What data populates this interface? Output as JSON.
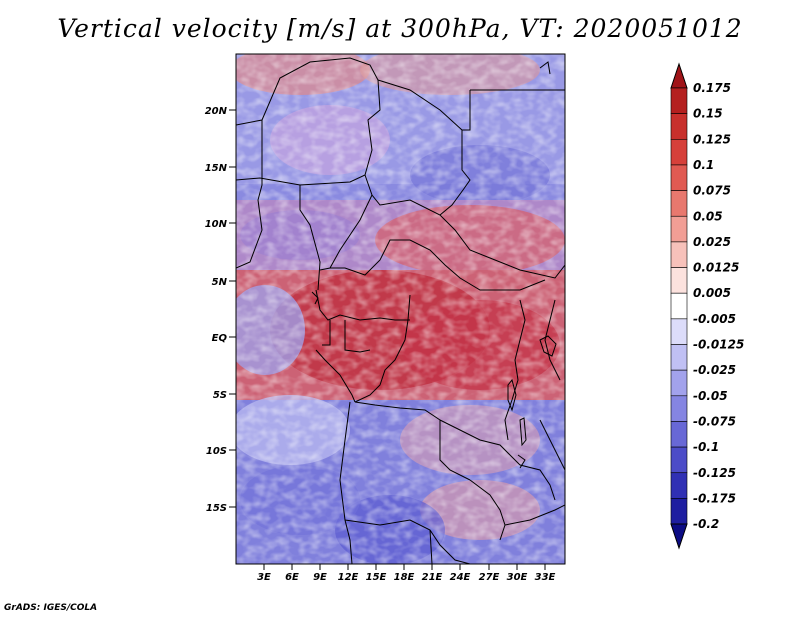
{
  "title": "Vertical velocity [m/s] at 300hPa, VT: 2020051012",
  "footer": "GrADS: IGES/COLA",
  "map": {
    "lat_labels": [
      "20N",
      "15N",
      "10N",
      "5N",
      "EQ",
      "5S",
      "10S",
      "15S"
    ],
    "lon_labels": [
      "3E",
      "6E",
      "9E",
      "12E",
      "15E",
      "18E",
      "21E",
      "24E",
      "27E",
      "30E",
      "33E"
    ],
    "field": "vertical velocity at 300hPa",
    "style": {
      "colormap": "blue-white-red diverging",
      "texture": "noisy filled contours"
    }
  },
  "colorbar": {
    "labels": [
      "0.175",
      "0.15",
      "0.125",
      "0.1",
      "0.075",
      "0.05",
      "0.025",
      "0.0125",
      "0.005",
      "-0.005",
      "-0.0125",
      "-0.025",
      "-0.05",
      "-0.075",
      "-0.1",
      "-0.125",
      "-0.175",
      "-0.2"
    ],
    "colors": [
      "#a01418",
      "#b4201f",
      "#c8302c",
      "#d6403a",
      "#e05a52",
      "#e8786e",
      "#f19e95",
      "#f7c1ba",
      "#fce2de",
      "#ffffff",
      "#dcdcfa",
      "#c0c0f4",
      "#a2a2ec",
      "#8585e2",
      "#6868d6",
      "#4c4cc8",
      "#3030b4",
      "#1e1ea0",
      "#0c0c84"
    ]
  }
}
